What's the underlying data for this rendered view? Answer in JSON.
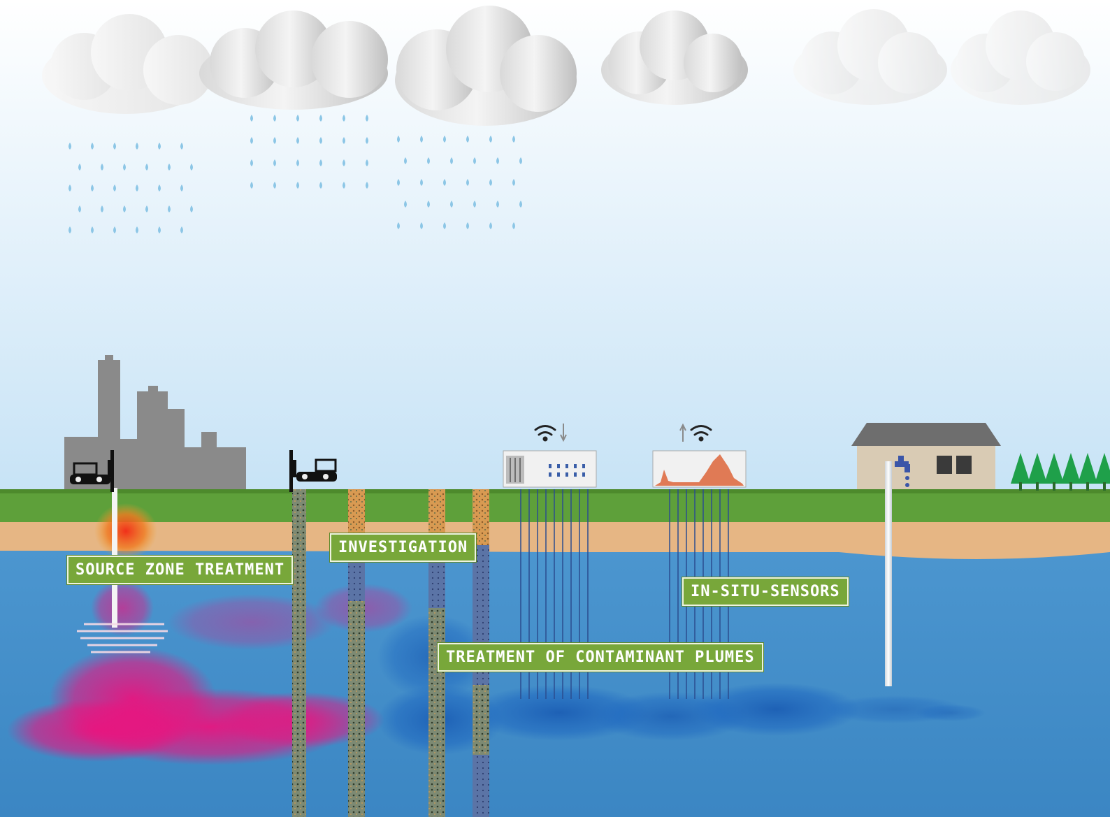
{
  "labels": {
    "source_zone": "SOURCE ZONE TREATMENT",
    "investigation": "INVESTIGATION",
    "in_situ_sensors": "IN-SITU-SENSORS",
    "treatment_plumes": "TREATMENT OF CONTAMINANT PLUMES"
  },
  "colors": {
    "sky_top": "#ffffff",
    "sky_bottom": "#c7e3f6",
    "grass": "#5ea03a",
    "sand": "#e6b684",
    "groundwater": "#3f8cc8",
    "source_contamination": "#e8157f",
    "plume_contamination": "#1f63b8",
    "label_background": "#78a73a",
    "factory": "#8a8a8a",
    "house": "#d9cbb4",
    "trees": "#1fa04a"
  },
  "icons": [
    "cloud-icon",
    "rain-icon",
    "factory-icon",
    "drill-rig-icon",
    "wifi-icon",
    "sensor-panel-icon",
    "house-icon",
    "faucet-icon",
    "tree-icon"
  ]
}
